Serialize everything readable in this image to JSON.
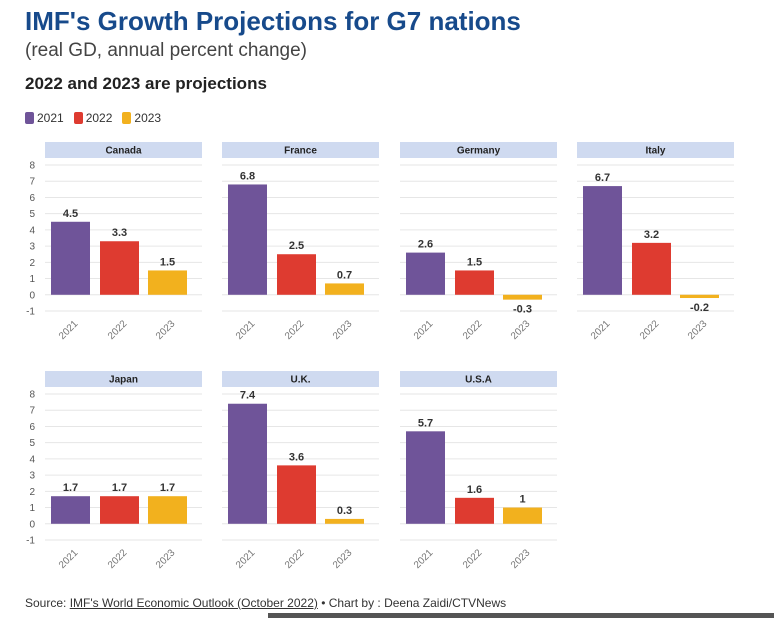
{
  "header": {
    "title": "IMF's Growth Projections for G7 nations",
    "subtitle": "(real GD, annual percent change)",
    "note": "2022 and 2023 are projections"
  },
  "footer": {
    "prefix": "Source: ",
    "source_link": "IMF's World Economic Outlook (October 2022)",
    "suffix": " • Chart by : Deena Zaidi/CTVNews"
  },
  "chart_data": {
    "type": "bar",
    "title": "IMF's Growth Projections for G7 nations",
    "subtitle": "(real GD, annual percent change)",
    "categories": [
      "2021",
      "2022",
      "2023"
    ],
    "series_colors": {
      "2021": "#6f5499",
      "2022": "#de3b30",
      "2023": "#f2b11e"
    },
    "legend": [
      "2021",
      "2022",
      "2023"
    ],
    "legend_position": "top-left",
    "ylim": [
      -1,
      8
    ],
    "yticks": [
      "8",
      "7",
      "6",
      "5",
      "4",
      "3",
      "2",
      "1",
      "0",
      "-1"
    ],
    "grid": true,
    "panels": [
      {
        "name": "Canada",
        "values": [
          4.5,
          3.3,
          1.5
        ],
        "labels": [
          "4.5",
          "3.3",
          "1.5"
        ]
      },
      {
        "name": "France",
        "values": [
          6.8,
          2.5,
          0.7
        ],
        "labels": [
          "6.8",
          "2.5",
          "0.7"
        ]
      },
      {
        "name": "Germany",
        "values": [
          2.6,
          1.5,
          -0.3
        ],
        "labels": [
          "2.6",
          "1.5",
          "-0.3"
        ]
      },
      {
        "name": "Italy",
        "values": [
          6.7,
          3.2,
          -0.2
        ],
        "labels": [
          "6.7",
          "3.2",
          "-0.2"
        ]
      },
      {
        "name": "Japan",
        "values": [
          1.7,
          1.7,
          1.7
        ],
        "labels": [
          "1.7",
          "1.7",
          "1.7"
        ]
      },
      {
        "name": "U.K.",
        "values": [
          7.4,
          3.6,
          0.3
        ],
        "labels": [
          "7.4",
          "3.6",
          "0.3"
        ]
      },
      {
        "name": "U.S.A",
        "values": [
          5.7,
          1.6,
          1.0
        ],
        "labels": [
          "5.7",
          "1.6",
          "1"
        ]
      }
    ]
  }
}
